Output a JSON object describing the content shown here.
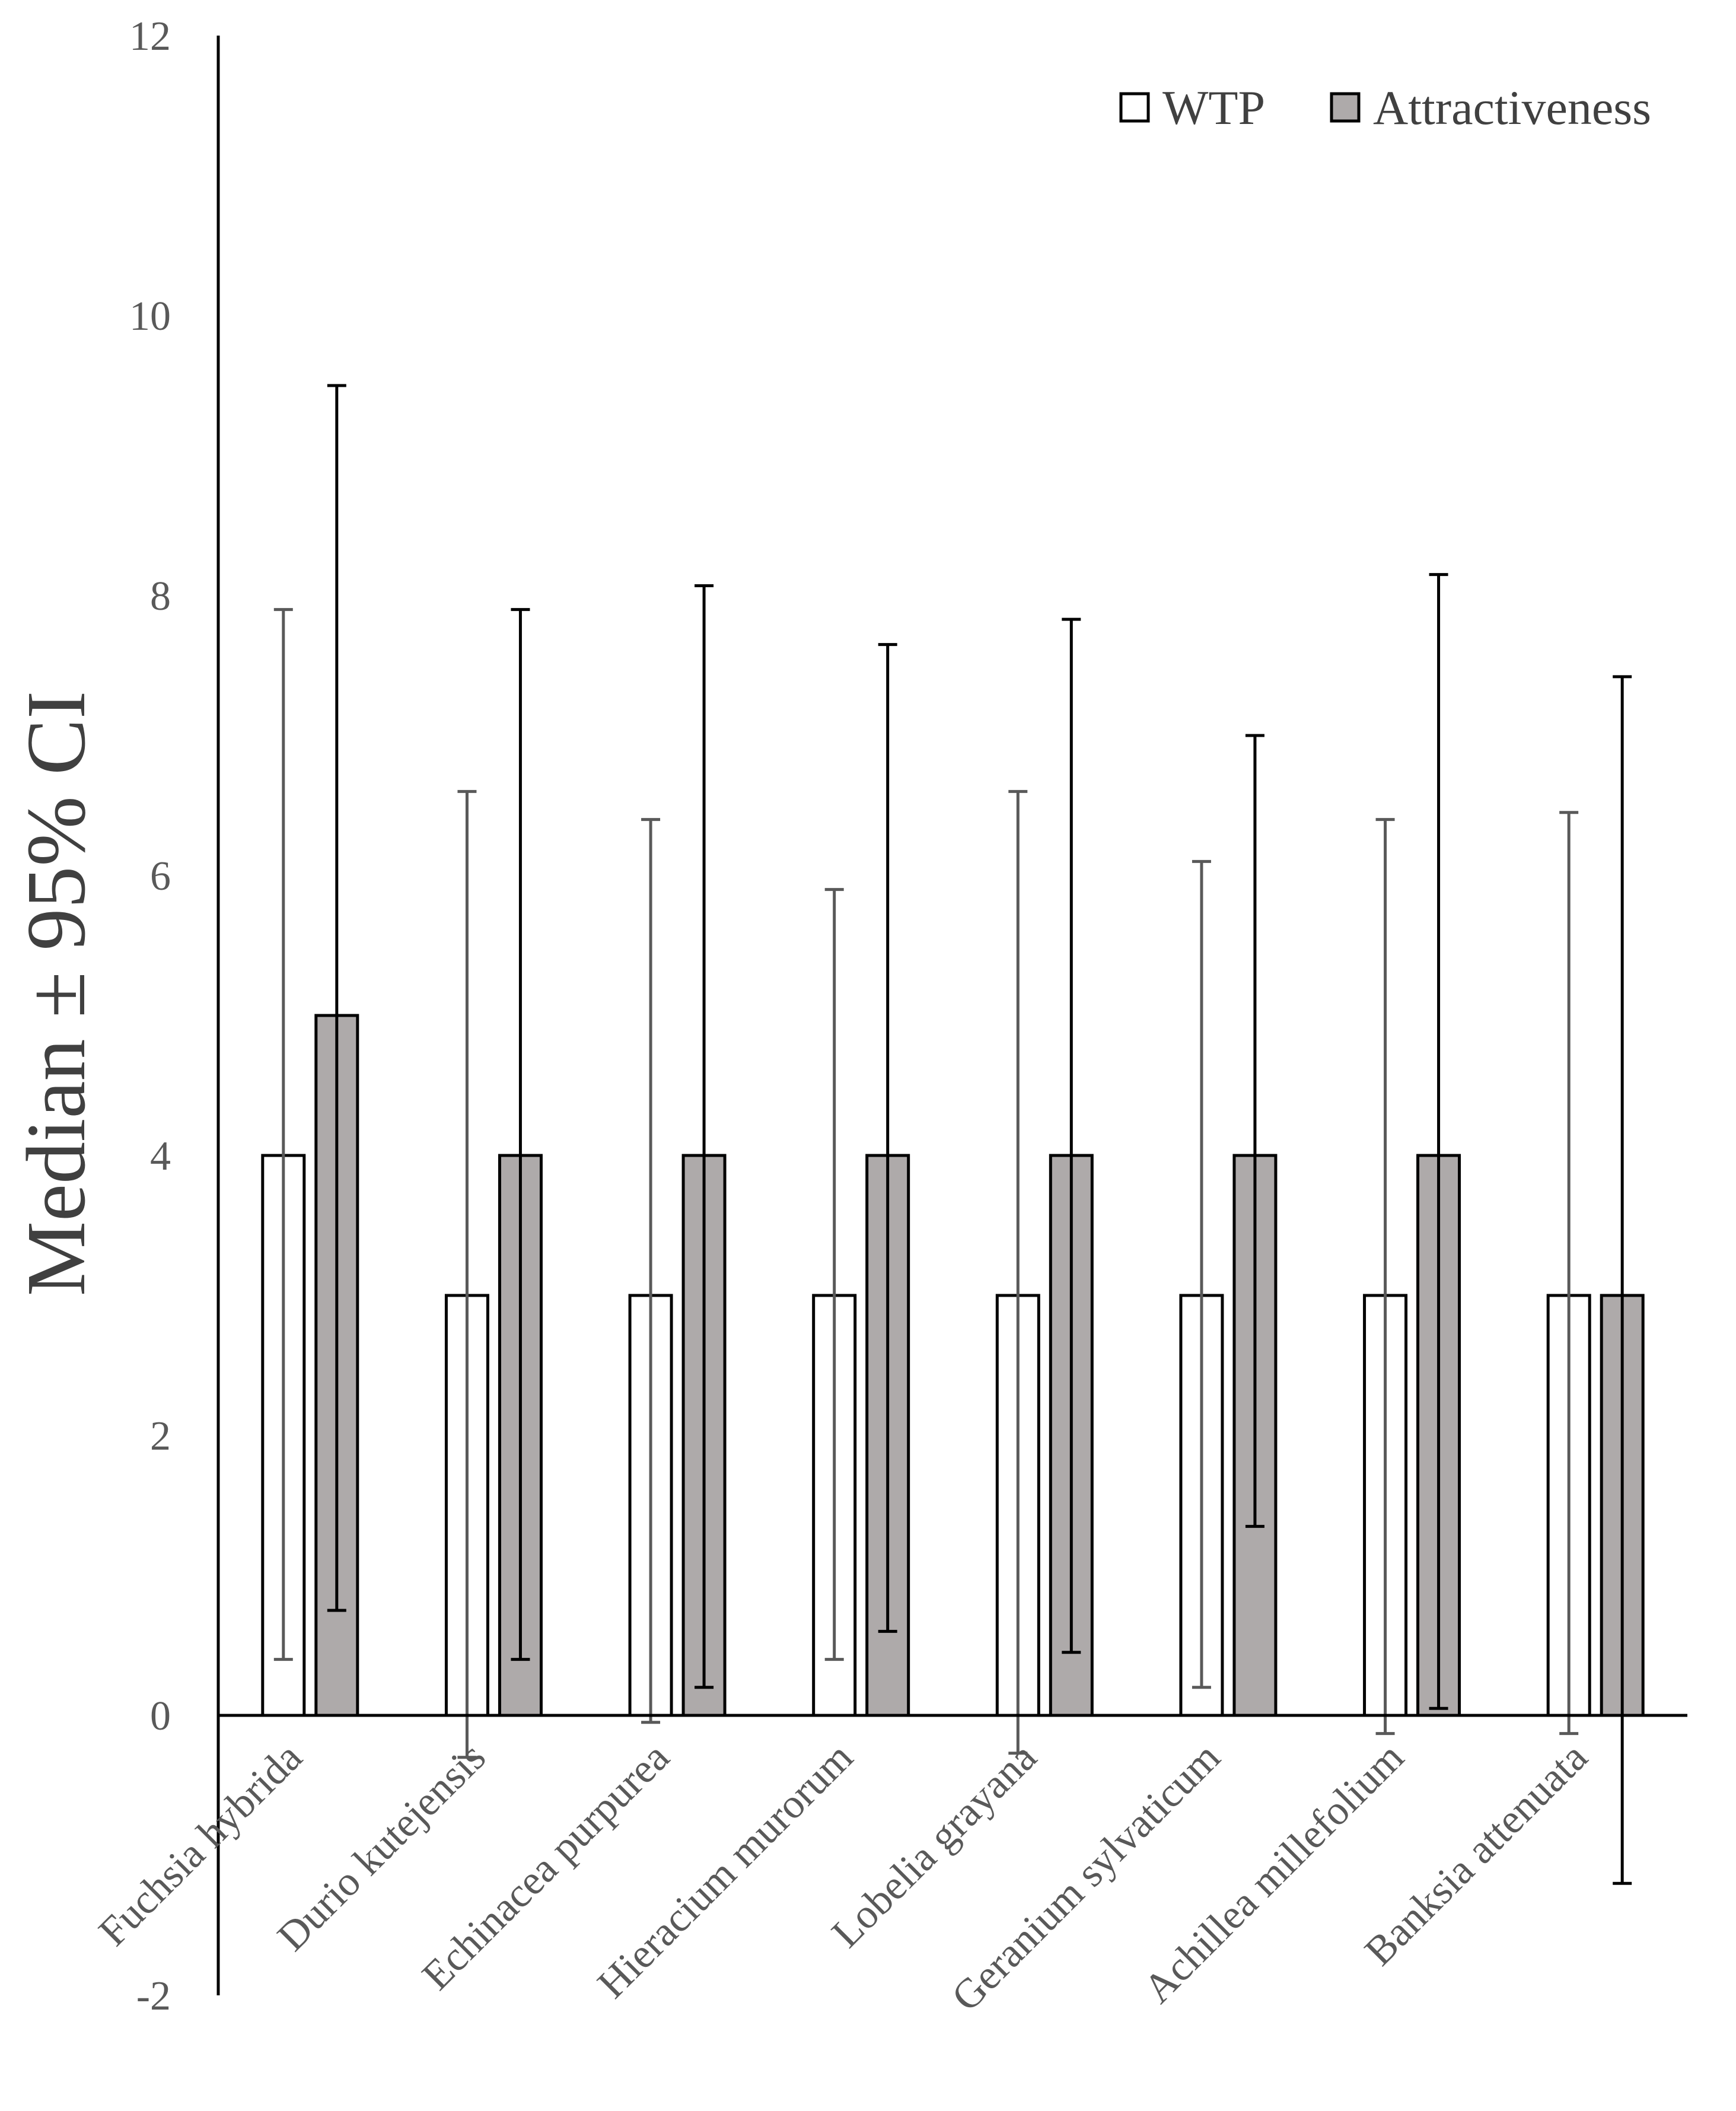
{
  "chart_data": {
    "type": "bar",
    "title": "",
    "xlabel": "",
    "ylabel": "Median ± 95% CI",
    "ylim": [
      -2,
      12
    ],
    "yticks": [
      -2,
      0,
      2,
      4,
      6,
      8,
      10,
      12
    ],
    "grid": false,
    "legend_position": "top-right",
    "categories": [
      "Fuchsia hybrida",
      "Durio kutejensis",
      "Echinacea purpurea",
      "Hieracium murorum",
      "Lobelia grayana",
      "Geranium sylvaticum",
      "Achillea millefolium",
      "Banksia attenuata"
    ],
    "series": [
      {
        "name": "WTP",
        "color": "#ffffff",
        "values": [
          4,
          3,
          3,
          3,
          3,
          3,
          3,
          3
        ],
        "ci_low": [
          0.4,
          -0.3,
          -0.05,
          0.4,
          -0.27,
          0.2,
          -0.13,
          -0.13
        ],
        "ci_high": [
          7.9,
          6.6,
          6.4,
          5.9,
          6.6,
          6.1,
          6.4,
          6.45
        ]
      },
      {
        "name": "Attractiveness",
        "color": "#aeaaaa",
        "values": [
          5,
          4,
          4,
          4,
          4,
          4,
          4,
          3
        ],
        "ci_low": [
          0.75,
          0.4,
          0.2,
          0.6,
          0.45,
          1.35,
          0.05,
          -1.2
        ],
        "ci_high": [
          9.5,
          7.9,
          8.07,
          7.65,
          7.83,
          7.0,
          8.15,
          7.42
        ]
      }
    ]
  }
}
